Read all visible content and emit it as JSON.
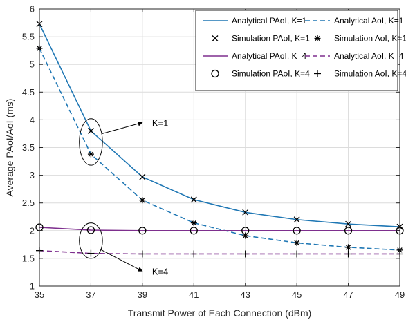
{
  "chart_data": {
    "type": "line",
    "title": "",
    "xlabel": "Transmit Power of Each Connection (dBm)",
    "ylabel": "Average PAoI/AoI (ms)",
    "xlim": [
      35,
      49
    ],
    "ylim": [
      1,
      6
    ],
    "x_ticks": [
      "35",
      "37",
      "39",
      "41",
      "43",
      "45",
      "47",
      "49"
    ],
    "y_ticks": [
      "1",
      "1.5",
      "2",
      "2.5",
      "3",
      "3.5",
      "4",
      "4.5",
      "5",
      "5.5",
      "6"
    ],
    "grid": true,
    "legend_position": "top-right",
    "colors": {
      "blue": "#1f77b4",
      "purple": "#7e2f8e",
      "black": "#000000"
    },
    "series": [
      {
        "name": "Analytical PAoI, K=1",
        "kind": "line",
        "dash": "solid",
        "color": "#1f77b4",
        "x": [
          35,
          37,
          39,
          41,
          43,
          45,
          47,
          49
        ],
        "y": [
          5.73,
          3.8,
          2.97,
          2.56,
          2.33,
          2.2,
          2.12,
          2.07
        ]
      },
      {
        "name": "Analytical AoI, K=1",
        "kind": "line",
        "dash": "dashed",
        "color": "#1f77b4",
        "x": [
          35,
          37,
          39,
          41,
          43,
          45,
          47,
          49
        ],
        "y": [
          5.29,
          3.38,
          2.55,
          2.14,
          1.91,
          1.78,
          1.7,
          1.65
        ]
      },
      {
        "name": "Simulation PAoI, K=1",
        "kind": "marker",
        "marker": "x",
        "color": "#000000",
        "x": [
          35,
          37,
          39,
          41,
          43,
          45,
          47,
          49
        ],
        "y": [
          5.73,
          3.8,
          2.97,
          2.56,
          2.33,
          2.2,
          2.12,
          2.07
        ]
      },
      {
        "name": "Simulation AoI, K=1",
        "kind": "marker",
        "marker": "asterisk",
        "color": "#000000",
        "x": [
          35,
          37,
          39,
          41,
          43,
          45,
          47,
          49
        ],
        "y": [
          5.29,
          3.38,
          2.55,
          2.14,
          1.91,
          1.78,
          1.7,
          1.65
        ]
      },
      {
        "name": "Analytical PAoI, K=4",
        "kind": "line",
        "dash": "solid",
        "color": "#7e2f8e",
        "x": [
          35,
          37,
          39,
          41,
          43,
          45,
          47,
          49
        ],
        "y": [
          2.06,
          2.01,
          2.0,
          2.0,
          2.0,
          2.0,
          2.0,
          2.0
        ]
      },
      {
        "name": "Analytical AoI, K=4",
        "kind": "line",
        "dash": "dashed",
        "color": "#7e2f8e",
        "x": [
          35,
          37,
          39,
          41,
          43,
          45,
          47,
          49
        ],
        "y": [
          1.64,
          1.59,
          1.58,
          1.58,
          1.58,
          1.58,
          1.58,
          1.58
        ]
      },
      {
        "name": "Simulation PAoI, K=4",
        "kind": "marker",
        "marker": "circle",
        "color": "#000000",
        "x": [
          35,
          37,
          39,
          41,
          43,
          45,
          47,
          49
        ],
        "y": [
          2.06,
          2.01,
          2.0,
          2.0,
          2.0,
          2.0,
          2.0,
          2.0
        ]
      },
      {
        "name": "Simulation AoI, K=4",
        "kind": "marker",
        "marker": "plus",
        "color": "#000000",
        "x": [
          35,
          37,
          39,
          41,
          43,
          45,
          47,
          49
        ],
        "y": [
          1.64,
          1.59,
          1.58,
          1.58,
          1.58,
          1.58,
          1.58,
          1.58
        ]
      }
    ],
    "annotations": [
      {
        "text": "K=1",
        "ellipse_center": [
          37,
          3.6
        ],
        "ellipse_rx": 0.45,
        "ellipse_ry": 0.42,
        "arrow_to": [
          39,
          3.95
        ]
      },
      {
        "text": "K=4",
        "ellipse_center": [
          37,
          1.82
        ],
        "ellipse_rx": 0.45,
        "ellipse_ry": 0.32,
        "arrow_to": [
          39,
          1.27
        ]
      }
    ]
  }
}
